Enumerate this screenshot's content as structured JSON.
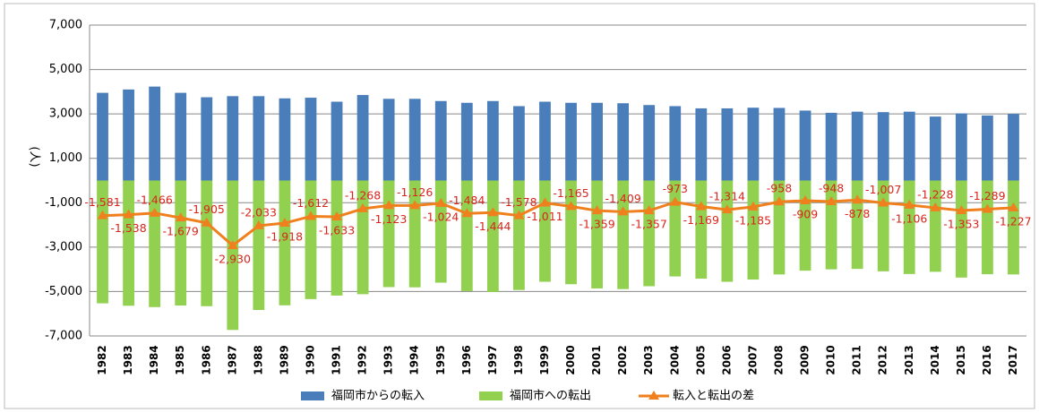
{
  "chart_data": {
    "type": "bar-line",
    "y_label": "(人)",
    "categories": [
      "1982",
      "1983",
      "1984",
      "1985",
      "1986",
      "1987",
      "1988",
      "1989",
      "1990",
      "1991",
      "1992",
      "1993",
      "1994",
      "1995",
      "1996",
      "1997",
      "1998",
      "1999",
      "2000",
      "2001",
      "2002",
      "2003",
      "2004",
      "2005",
      "2006",
      "2007",
      "2008",
      "2009",
      "2010",
      "2011",
      "2012",
      "2013",
      "2014",
      "2015",
      "2016",
      "2017"
    ],
    "series": [
      {
        "name": "福岡市からの転入",
        "type": "bar",
        "color": "#4a7ebb",
        "values": [
          3950,
          4100,
          4230,
          3950,
          3750,
          3800,
          3800,
          3700,
          3730,
          3550,
          3850,
          3680,
          3680,
          3580,
          3500,
          3580,
          3350,
          3550,
          3500,
          3500,
          3480,
          3400,
          3350,
          3250,
          3250,
          3280,
          3270,
          3150,
          3050,
          3100,
          3080,
          3100,
          2880,
          3020,
          2930,
          3000
        ]
      },
      {
        "name": "福岡市への転出",
        "type": "bar",
        "color": "#92d050",
        "values": [
          -5530,
          -5640,
          -5700,
          -5630,
          -5660,
          -6730,
          -5830,
          -5620,
          -5340,
          -5180,
          -5120,
          -4800,
          -4810,
          -4600,
          -4980,
          -5020,
          -4930,
          -4560,
          -4670,
          -4860,
          -4890,
          -4760,
          -4320,
          -4420,
          -4560,
          -4460,
          -4230,
          -4060,
          -4000,
          -3980,
          -4090,
          -4210,
          -4110,
          -4370,
          -4220,
          -4230
        ]
      },
      {
        "name": "転入と転出の差",
        "type": "line",
        "color": "#f07f1e",
        "label_color": "#d9261c",
        "values": [
          -1581,
          -1538,
          -1466,
          -1679,
          -1905,
          -2930,
          -2033,
          -1918,
          -1612,
          -1633,
          -1268,
          -1123,
          -1126,
          -1024,
          -1484,
          -1444,
          -1578,
          -1011,
          -1165,
          -1359,
          -1409,
          -1357,
          -973,
          -1169,
          -1314,
          -1185,
          -958,
          -909,
          -948,
          -878,
          -1007,
          -1106,
          -1228,
          -1353,
          -1289,
          -1227
        ],
        "value_labels": [
          "-1,581",
          "-1,538",
          "-1,466",
          "-1,679",
          "-1,905",
          "-2,930",
          "-2,033",
          "-1,918",
          "-1,612",
          "-1,633",
          "-1,268",
          "-1,123",
          "-1,126",
          "-1,024",
          "-1,484",
          "-1,444",
          "-1,578",
          "-1,011",
          "-1,165",
          "-1,359",
          "-1,409",
          "-1,357",
          "-973",
          "-1,169",
          "-1,314",
          "-1,185",
          "-958",
          "-909",
          "-948",
          "-878",
          "-1,007",
          "-1,106",
          "-1,228",
          "-1,353",
          "-1,289",
          "-1,227"
        ]
      }
    ],
    "ylim": [
      -7000,
      7000
    ],
    "yticks": [
      {
        "value": 7000,
        "label": "7,000"
      },
      {
        "value": 5000,
        "label": "5,000"
      },
      {
        "value": 3000,
        "label": "3,000"
      },
      {
        "value": 1000,
        "label": "1,000"
      },
      {
        "value": -1000,
        "label": "-1,000"
      },
      {
        "value": -3000,
        "label": "-3,000"
      },
      {
        "value": -5000,
        "label": "-5,000"
      },
      {
        "value": -7000,
        "label": "-7,000"
      }
    ],
    "grid": true,
    "legend": "bottom"
  }
}
